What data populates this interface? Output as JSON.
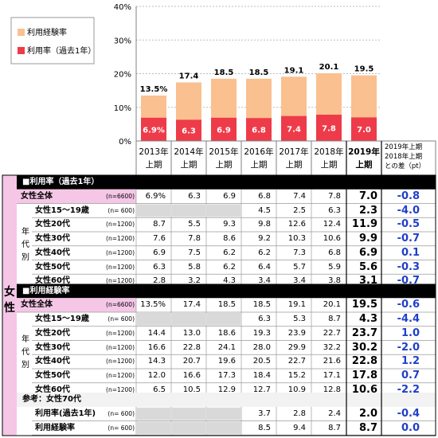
{
  "chart_data": {
    "type": "bar",
    "categories": [
      {
        "year": "2013年",
        "half": "上期"
      },
      {
        "year": "2014年",
        "half": "上期"
      },
      {
        "year": "2015年",
        "half": "上期"
      },
      {
        "year": "2016年",
        "half": "上期"
      },
      {
        "year": "2017年",
        "half": "上期"
      },
      {
        "year": "2018年",
        "half": "上期"
      },
      {
        "year": "2019年",
        "half": "上期"
      }
    ],
    "series": [
      {
        "name": "利用経験率",
        "values": [
          13.5,
          17.4,
          18.5,
          18.5,
          19.1,
          20.1,
          19.5
        ],
        "labels": [
          "13.5%",
          "17.4",
          "18.5",
          "18.5",
          "19.1",
          "20.1",
          "19.5"
        ],
        "color": "#FAC090"
      },
      {
        "name": "利用率（過去1年）",
        "values": [
          6.9,
          6.3,
          6.9,
          6.8,
          7.4,
          7.8,
          7.0
        ],
        "labels": [
          "6.9%",
          "6.3",
          "6.9",
          "6.8",
          "7.4",
          "7.8",
          "7.0"
        ],
        "color": "#EE3B4A"
      }
    ],
    "yticks": [
      "0%",
      "10%",
      "20%",
      "30%",
      "40%"
    ],
    "ylim": [
      0,
      40
    ],
    "grid": true,
    "legend_position": "top-left"
  },
  "table": {
    "diff_header": [
      "2019年上期",
      "2018年上期",
      "との差（pt）"
    ],
    "side_label": "女性",
    "age_group_label": [
      "年",
      "代",
      "別"
    ],
    "sections": [
      {
        "title": "■利用率（過去1年）",
        "rows": [
          {
            "label": "女性全体",
            "n": "(n=6600)",
            "values": [
              "6.9%",
              "6.3",
              "6.9",
              "6.8",
              "7.4",
              "7.8"
            ],
            "y2019": "7.0",
            "diff": "-0.8",
            "sub": false
          },
          {
            "label": "女性15～19歳",
            "n": "(n=  600)",
            "values": [
              "",
              "",
              "",
              "4.5",
              "2.5",
              "6.3"
            ],
            "y2019": "2.3",
            "diff": "-4.0",
            "sub": true
          },
          {
            "label": "女性20代",
            "n": "(n=1200)",
            "values": [
              "8.7",
              "5.5",
              "9.3",
              "9.8",
              "12.6",
              "12.4"
            ],
            "y2019": "11.9",
            "diff": "-0.5",
            "sub": true
          },
          {
            "label": "女性30代",
            "n": "(n=1200)",
            "values": [
              "7.6",
              "7.8",
              "8.6",
              "9.2",
              "10.3",
              "10.6"
            ],
            "y2019": "9.9",
            "diff": "-0.7",
            "sub": true
          },
          {
            "label": "女性40代",
            "n": "(n=1200)",
            "values": [
              "6.9",
              "7.5",
              "6.2",
              "6.2",
              "7.3",
              "6.8"
            ],
            "y2019": "6.9",
            "diff": "0.1",
            "sub": true
          },
          {
            "label": "女性50代",
            "n": "(n=1200)",
            "values": [
              "6.3",
              "5.8",
              "6.2",
              "6.4",
              "5.7",
              "5.9"
            ],
            "y2019": "5.6",
            "diff": "-0.3",
            "sub": true
          },
          {
            "label": "女性60代",
            "n": "(n=1200)",
            "values": [
              "2.8",
              "3.2",
              "4.3",
              "3.4",
              "3.4",
              "3.8"
            ],
            "y2019": "3.1",
            "diff": "-0.7",
            "sub": true
          }
        ]
      },
      {
        "title": "■利用経験率",
        "rows": [
          {
            "label": "女性全体",
            "n": "(n=6600)",
            "values": [
              "13.5%",
              "17.4",
              "18.5",
              "18.5",
              "19.1",
              "20.1"
            ],
            "y2019": "19.5",
            "diff": "-0.6",
            "sub": false
          },
          {
            "label": "女性15～19歳",
            "n": "(n=  600)",
            "values": [
              "",
              "",
              "",
              "6.3",
              "5.3",
              "8.7"
            ],
            "y2019": "4.3",
            "diff": "-4.4",
            "sub": true
          },
          {
            "label": "女性20代",
            "n": "(n=1200)",
            "values": [
              "14.4",
              "13.0",
              "18.6",
              "19.3",
              "23.9",
              "22.7"
            ],
            "y2019": "23.7",
            "diff": "1.0",
            "sub": true
          },
          {
            "label": "女性30代",
            "n": "(n=1200)",
            "values": [
              "16.6",
              "22.8",
              "24.1",
              "28.0",
              "29.9",
              "32.2"
            ],
            "y2019": "30.2",
            "diff": "-2.0",
            "sub": true
          },
          {
            "label": "女性40代",
            "n": "(n=1200)",
            "values": [
              "14.3",
              "20.7",
              "19.6",
              "20.5",
              "22.7",
              "21.6"
            ],
            "y2019": "22.8",
            "diff": "1.2",
            "sub": true
          },
          {
            "label": "女性50代",
            "n": "(n=1200)",
            "values": [
              "12.0",
              "16.6",
              "17.3",
              "18.4",
              "15.2",
              "17.1"
            ],
            "y2019": "17.8",
            "diff": "0.7",
            "sub": true
          },
          {
            "label": "女性60代",
            "n": "(n=1200)",
            "values": [
              "6.5",
              "10.5",
              "12.9",
              "12.7",
              "10.9",
              "12.8"
            ],
            "y2019": "10.6",
            "diff": "-2.2",
            "sub": true
          }
        ]
      },
      {
        "title": "参考：女性70代",
        "rows": [
          {
            "label": "利用率(過去1年)",
            "n": "(n=  600)",
            "values": [
              "",
              "",
              "",
              "3.7",
              "2.8",
              "2.4"
            ],
            "y2019": "2.0",
            "diff": "-0.4",
            "sub": true
          },
          {
            "label": "利用経験率",
            "n": "(n=  600)",
            "values": [
              "",
              "",
              "",
              "8.5",
              "9.4",
              "8.7"
            ],
            "y2019": "8.7",
            "diff": "0.0",
            "sub": true
          }
        ]
      }
    ]
  }
}
